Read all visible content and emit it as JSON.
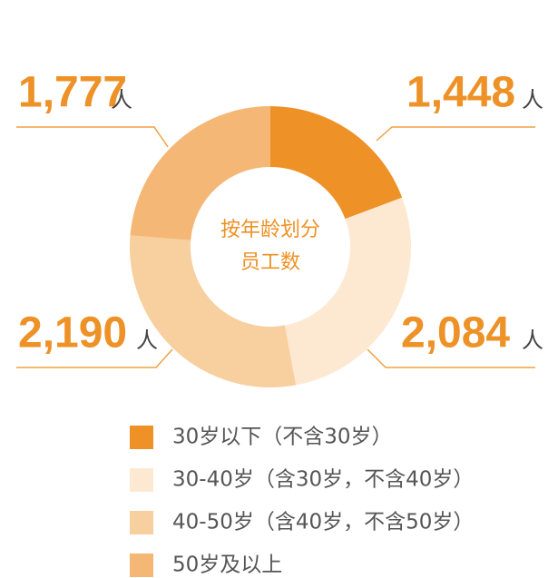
{
  "chart_data": {
    "type": "donut",
    "center_label": [
      "按年龄划分",
      "员工数"
    ],
    "unit": "人",
    "categories": [
      "30岁以下（不含30岁）",
      "30-40岁（含30岁，不含40岁）",
      "40-50岁（含40岁，不含50岁）",
      "50岁及以上"
    ],
    "values": [
      1448,
      2084,
      2190,
      1777
    ],
    "value_labels": [
      "1,448",
      "2,084",
      "2,190",
      "1,777"
    ],
    "colors": [
      "#ee9126",
      "#fde9d2",
      "#f8cf9f",
      "#f4b776"
    ]
  }
}
